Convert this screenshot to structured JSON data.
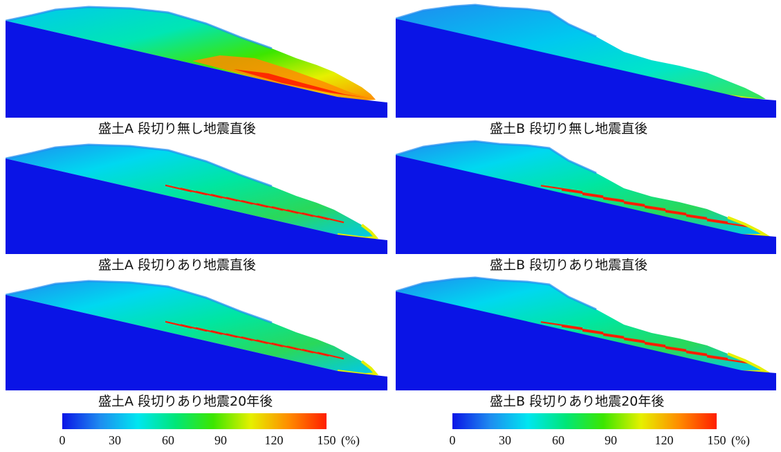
{
  "panels": [
    {
      "id": "a1",
      "caption": "盛土A  段切り無し地震直後",
      "embankment": "A",
      "benched": false
    },
    {
      "id": "b1",
      "caption": "盛土B  段切り無し地震直後",
      "embankment": "B",
      "benched": false
    },
    {
      "id": "a2",
      "caption": "盛土A  段切りあり地震直後",
      "embankment": "A",
      "benched": true
    },
    {
      "id": "b2",
      "caption": "盛土B  段切りあり地震直後",
      "embankment": "B",
      "benched": true
    },
    {
      "id": "a3",
      "caption": "盛土A  段切りあり地震20年後",
      "embankment": "A",
      "benched": true
    },
    {
      "id": "b3",
      "caption": "盛土B  段切りあり地震20年後",
      "embankment": "B",
      "benched": true
    }
  ],
  "colorbar": {
    "ticks": [
      "0",
      "30",
      "60",
      "90",
      "120",
      "150"
    ],
    "unit": "(%)",
    "min": 0,
    "max": 150,
    "colors": [
      "#0a14e6",
      "#1e8cf0",
      "#00e6f0",
      "#00e678",
      "#3ce600",
      "#e6f000",
      "#ff8c00",
      "#ff1e00"
    ]
  },
  "colors": {
    "ground": "#0a14e6"
  }
}
